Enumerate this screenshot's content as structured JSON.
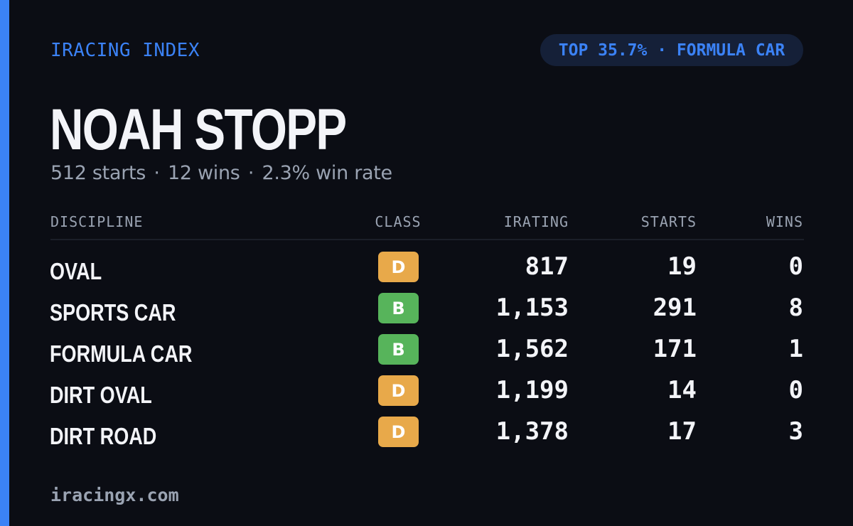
{
  "header": {
    "brand": "IRACING INDEX",
    "rank_badge": "TOP 35.7% · FORMULA CAR"
  },
  "player": {
    "name": "NOAH STOPP",
    "starts_text": "512 starts",
    "wins_text": "12 wins",
    "win_rate_text": "2.3% win rate",
    "separator": "·"
  },
  "table": {
    "columns": {
      "discipline": "DISCIPLINE",
      "class": "CLASS",
      "irating": "IRATING",
      "starts": "STARTS",
      "wins": "WINS"
    },
    "rows": [
      {
        "discipline": "OVAL",
        "class": "D",
        "irating": "817",
        "starts": "19",
        "wins": "0"
      },
      {
        "discipline": "SPORTS CAR",
        "class": "B",
        "irating": "1,153",
        "starts": "291",
        "wins": "8"
      },
      {
        "discipline": "FORMULA CAR",
        "class": "B",
        "irating": "1,562",
        "starts": "171",
        "wins": "1"
      },
      {
        "discipline": "DIRT OVAL",
        "class": "D",
        "irating": "1,199",
        "starts": "14",
        "wins": "0"
      },
      {
        "discipline": "DIRT ROAD",
        "class": "D",
        "irating": "1,378",
        "starts": "17",
        "wins": "3"
      }
    ]
  },
  "class_colors": {
    "B": "#57b45b",
    "D": "#e8a94a"
  },
  "colors": {
    "accent": "#3b82f6",
    "background": "#0b0d14",
    "pill_background": "#152038"
  },
  "footer": {
    "site": "iracingx.com"
  }
}
